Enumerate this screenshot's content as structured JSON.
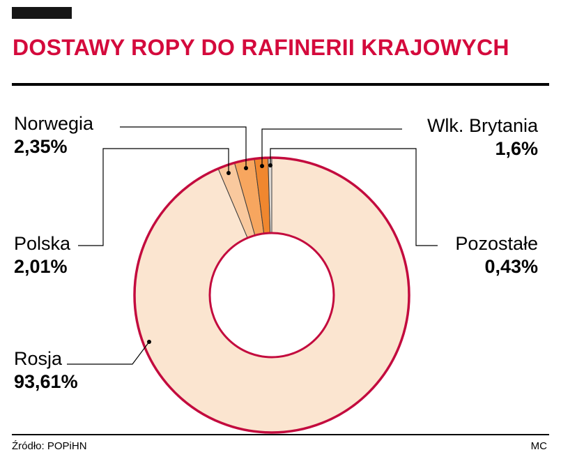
{
  "header": {
    "title": "DOSTAWY ROPY DO RAFINERII KRAJOWYCH"
  },
  "footer": {
    "source": "Źródło: POPiHN",
    "credit": "MC"
  },
  "chart_data": {
    "type": "pie",
    "subtype": "donut",
    "title": "DOSTAWY ROPY DO RAFINERII KRAJOWYCH",
    "unit": "%",
    "direction": "clockwise",
    "start_angle_deg": 0,
    "ring_color": "#c30b3e",
    "title_color": "#d40a3c",
    "source": "Źródło: POPiHN",
    "slices": [
      {
        "label": "Rosja",
        "value": 93.61,
        "display": "93,61%",
        "color": "#fbe5d0"
      },
      {
        "label": "Polska",
        "value": 2.01,
        "display": "2,01%",
        "color": "#f9c99e"
      },
      {
        "label": "Norwegia",
        "value": 2.35,
        "display": "2,35%",
        "color": "#f7a65f"
      },
      {
        "label": "Wlk. Brytania",
        "value": 1.6,
        "display": "1,6%",
        "color": "#f0872f"
      },
      {
        "label": "Pozostałe",
        "value": 0.43,
        "display": "0,43%",
        "color": "#ddd8d3"
      }
    ]
  }
}
